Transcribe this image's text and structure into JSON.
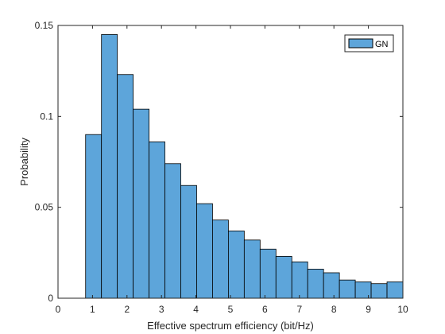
{
  "chart_data": {
    "type": "bar",
    "title": "",
    "xlabel": "Effective spectrum efficiency (bit/Hz)",
    "ylabel": "Probability",
    "xlim": [
      0,
      10
    ],
    "ylim": [
      0,
      0.15
    ],
    "xticks": [
      0,
      1,
      2,
      3,
      4,
      5,
      6,
      7,
      8,
      9,
      10
    ],
    "xtick_labels": [
      "0",
      "1",
      "2",
      "3",
      "4",
      "5",
      "6",
      "7",
      "8",
      "9",
      "10"
    ],
    "yticks": [
      0,
      0.05,
      0.1,
      0.15
    ],
    "ytick_labels": [
      "0",
      "0.05",
      "0.1",
      "0.15"
    ],
    "grid": false,
    "legend_position": "top-right",
    "series": [
      {
        "name": "GN",
        "color": "#5DA5DA",
        "edge_color": "#000000",
        "bin_edges": [
          0.8,
          1.26,
          1.72,
          2.18,
          2.64,
          3.1,
          3.56,
          4.02,
          4.48,
          4.94,
          5.4,
          5.86,
          6.32,
          6.78,
          7.24,
          7.7,
          8.16,
          8.62,
          9.08,
          9.54,
          10.0
        ],
        "values": [
          0.09,
          0.145,
          0.123,
          0.104,
          0.086,
          0.074,
          0.062,
          0.052,
          0.043,
          0.037,
          0.032,
          0.027,
          0.023,
          0.02,
          0.016,
          0.014,
          0.01,
          0.009,
          0.008,
          0.009
        ]
      }
    ]
  }
}
